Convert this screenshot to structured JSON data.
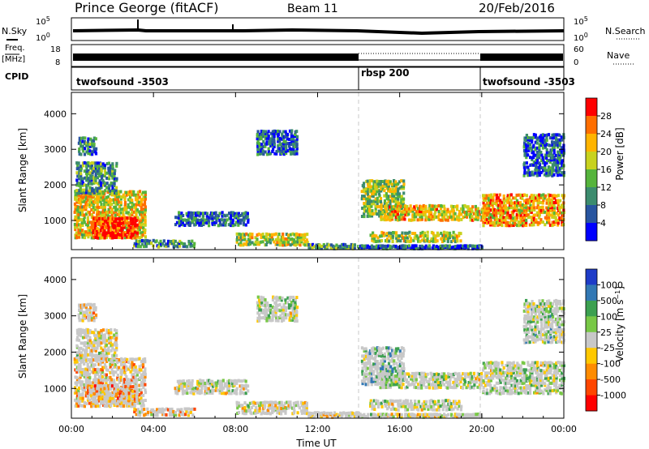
{
  "header": {
    "station": "Prince George (fitACF)",
    "beam": "Beam 11",
    "date": "20/Feb/2016"
  },
  "top_panels": {
    "nsky_label": "N.Sky",
    "nsearch_label": "N.Search",
    "nsky_ticks": [
      "10^5",
      "10^0"
    ],
    "freq_label": "Freq.",
    "freq_unit": "[MHz]",
    "freq_ticks": [
      "18",
      "8"
    ],
    "nave_label": "Nave",
    "nave_ticks": [
      "60",
      "0"
    ],
    "cpid_label": "CPID",
    "cpid_segments": [
      {
        "label": "twofsound -3503",
        "start_hour": 0,
        "end_hour": 14
      },
      {
        "label": "rbsp 200",
        "start_hour": 14,
        "end_hour": 20
      },
      {
        "label": "twofsound -3503",
        "start_hour": 20,
        "end_hour": 24
      }
    ]
  },
  "chart_data": [
    {
      "type": "heatmap",
      "title": "Power",
      "xlabel": "Time UT",
      "ylabel": "Slant Range [km]",
      "xlim": [
        0,
        24
      ],
      "ylim": [
        180,
        4600
      ],
      "x_tick_labels": [
        "00:00",
        "04:00",
        "08:00",
        "12:00",
        "16:00",
        "20:00",
        "00:00"
      ],
      "y_ticks": [
        1000,
        2000,
        3000,
        4000
      ],
      "colorbar": {
        "label": "Power [dB]",
        "tick_labels": [
          "4",
          "8",
          "12",
          "16",
          "20",
          "24",
          "28"
        ],
        "colors": [
          "#0000ff",
          "#2855a0",
          "#3c8c6e",
          "#55b43c",
          "#c8d21e",
          "#ffb400",
          "#ff6e00",
          "#ff0000"
        ]
      },
      "mode_change_hours": [
        14,
        20
      ]
    },
    {
      "type": "heatmap",
      "title": "Velocity",
      "xlabel": "Time UT",
      "ylabel": "Slant Range [km]",
      "xlim": [
        0,
        24
      ],
      "ylim": [
        180,
        4600
      ],
      "x_tick_labels": [
        "00:00",
        "04:00",
        "08:00",
        "12:00",
        "16:00",
        "20:00",
        "00:00"
      ],
      "y_ticks": [
        1000,
        2000,
        3000,
        4000
      ],
      "colorbar": {
        "label": "Velocity [m s^-1]",
        "tick_labels": [
          "1000",
          "500",
          "100",
          "25",
          "-25",
          "-100",
          "-500",
          "-1000"
        ],
        "colors": [
          "#1e3cc8",
          "#3278b4",
          "#3ca050",
          "#78c846",
          "#c8c8c8",
          "#ffc800",
          "#ff8c00",
          "#ff4600",
          "#ff0000"
        ]
      },
      "mode_change_hours": [
        14,
        20
      ]
    }
  ],
  "time_axis_label": "Time UT"
}
